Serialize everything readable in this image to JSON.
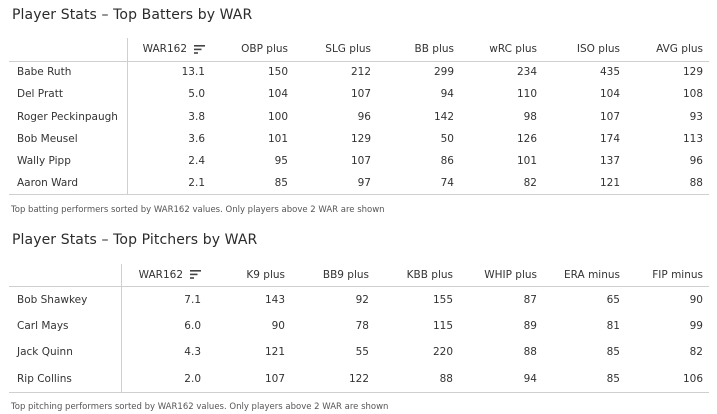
{
  "batters": {
    "title": "Player Stats – Top Batters by WAR",
    "columns": [
      "",
      "WAR162",
      "OBP plus",
      "SLG plus",
      "BB plus",
      "wRC plus",
      "ISO plus",
      "AVG plus"
    ],
    "rows": [
      [
        "Babe Ruth",
        "13.1",
        "150",
        "212",
        "299",
        "234",
        "435",
        "129"
      ],
      [
        "Del Pratt",
        "5.0",
        "104",
        "107",
        "94",
        "110",
        "104",
        "108"
      ],
      [
        "Roger Peckinpaugh",
        "3.8",
        "100",
        "96",
        "142",
        "98",
        "107",
        "93"
      ],
      [
        "Bob Meusel",
        "3.6",
        "101",
        "129",
        "50",
        "126",
        "174",
        "113"
      ],
      [
        "Wally Pipp",
        "2.4",
        "95",
        "107",
        "86",
        "101",
        "137",
        "96"
      ],
      [
        "Aaron Ward",
        "2.1",
        "85",
        "97",
        "74",
        "82",
        "121",
        "88"
      ]
    ],
    "caption": "Top batting performers sorted by WAR162 values. Only players above 2 WAR are shown"
  },
  "pitchers": {
    "title": "Player Stats – Top Pitchers by WAR",
    "columns": [
      "",
      "WAR162",
      "K9 plus",
      "BB9 plus",
      "KBB plus",
      "WHIP plus",
      "ERA minus",
      "FIP minus"
    ],
    "rows": [
      [
        "Bob Shawkey",
        "7.1",
        "143",
        "92",
        "155",
        "87",
        "65",
        "90"
      ],
      [
        "Carl Mays",
        "6.0",
        "90",
        "78",
        "115",
        "89",
        "81",
        "99"
      ],
      [
        "Jack Quinn",
        "4.3",
        "121",
        "55",
        "220",
        "88",
        "85",
        "82"
      ],
      [
        "Rip Collins",
        "2.0",
        "107",
        "122",
        "88",
        "94",
        "85",
        "106"
      ]
    ],
    "caption": "Top pitching performers sorted by WAR162 values. Only players above 2 WAR are shown"
  },
  "sort_icon": "sort-descending-icon",
  "colors": {
    "border": "#cfcfcf",
    "text": "#333333"
  }
}
